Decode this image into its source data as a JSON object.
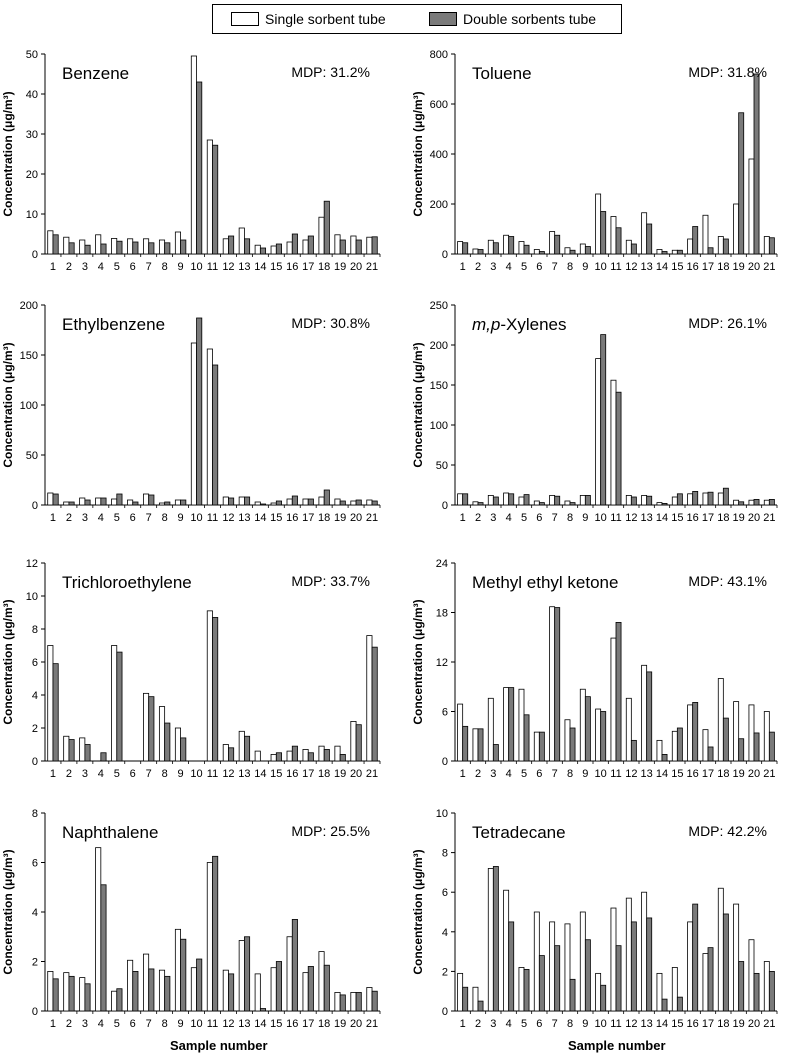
{
  "legend": {
    "single_label": "Single sorbent tube",
    "double_label": "Double sorbents tube",
    "single_color": "#ffffff",
    "double_color": "#7a7a7a"
  },
  "xlabel": "Sample number",
  "ylabel": "Concentration (μg/m³)",
  "chart_data": [
    {
      "type": "bar",
      "title": "Benzene",
      "annotation": "MDP: 31.2%",
      "ylabel": "Concentration (μg/m³)",
      "xlabel": "",
      "ylim": [
        0,
        50
      ],
      "yticks": [
        0,
        10,
        20,
        30,
        40,
        50
      ],
      "categories": [
        "1",
        "2",
        "3",
        "4",
        "5",
        "6",
        "7",
        "8",
        "9",
        "10",
        "11",
        "12",
        "13",
        "14",
        "15",
        "16",
        "17",
        "18",
        "19",
        "20",
        "21"
      ],
      "series": [
        {
          "name": "Single sorbent tube",
          "values": [
            5.8,
            4.2,
            3.5,
            4.8,
            3.9,
            3.8,
            3.8,
            3.5,
            5.5,
            49.5,
            28.5,
            3.8,
            6.5,
            2.2,
            2.0,
            3.0,
            3.5,
            9.2,
            4.8,
            4.5,
            4.2
          ]
        },
        {
          "name": "Double sorbents tube",
          "values": [
            4.8,
            2.8,
            2.2,
            2.5,
            3.2,
            3.0,
            2.8,
            2.8,
            3.5,
            43.0,
            27.2,
            4.5,
            3.8,
            1.5,
            2.5,
            5.0,
            4.5,
            13.2,
            3.5,
            3.5,
            4.3
          ]
        }
      ]
    },
    {
      "type": "bar",
      "title": "Toluene",
      "annotation": "MDP: 31.8%",
      "ylabel": "Concentration (μg/m³)",
      "xlabel": "",
      "ylim": [
        0,
        800
      ],
      "yticks": [
        0,
        200,
        400,
        600,
        800
      ],
      "categories": [
        "1",
        "2",
        "3",
        "4",
        "5",
        "6",
        "7",
        "8",
        "9",
        "10",
        "11",
        "12",
        "13",
        "14",
        "15",
        "16",
        "17",
        "18",
        "19",
        "20",
        "21"
      ],
      "series": [
        {
          "name": "Single sorbent tube",
          "values": [
            50,
            20,
            55,
            75,
            50,
            18,
            90,
            25,
            40,
            240,
            150,
            55,
            165,
            18,
            15,
            60,
            155,
            70,
            200,
            380,
            70
          ]
        },
        {
          "name": "Double sorbents tube",
          "values": [
            45,
            18,
            45,
            70,
            35,
            10,
            75,
            15,
            30,
            170,
            105,
            40,
            120,
            10,
            15,
            110,
            25,
            60,
            565,
            720,
            65
          ]
        }
      ]
    },
    {
      "type": "bar",
      "title": "Ethylbenzene",
      "annotation": "MDP: 30.8%",
      "ylabel": "Concentration (μg/m³)",
      "xlabel": "",
      "ylim": [
        0,
        200
      ],
      "yticks": [
        0,
        50,
        100,
        150,
        200
      ],
      "categories": [
        "1",
        "2",
        "3",
        "4",
        "5",
        "6",
        "7",
        "8",
        "9",
        "10",
        "11",
        "12",
        "13",
        "14",
        "15",
        "16",
        "17",
        "18",
        "19",
        "20",
        "21"
      ],
      "series": [
        {
          "name": "Single sorbent tube",
          "values": [
            12,
            3,
            7,
            7,
            6,
            5,
            11,
            2,
            5,
            162,
            156,
            8,
            8,
            3,
            2,
            6,
            6,
            8,
            6,
            4,
            5
          ]
        },
        {
          "name": "Double sorbents tube",
          "values": [
            11,
            3,
            5,
            7,
            11,
            3,
            10,
            3,
            5,
            187,
            140,
            7,
            8,
            1,
            4,
            9,
            6,
            15,
            4,
            5,
            4
          ]
        }
      ]
    },
    {
      "type": "bar",
      "title": "m,p-Xylenes",
      "annotation": "MDP: 26.1%",
      "ylabel": "Concentration (μg/m³)",
      "xlabel": "",
      "ylim": [
        0,
        250
      ],
      "yticks": [
        0,
        50,
        100,
        150,
        200,
        250
      ],
      "categories": [
        "1",
        "2",
        "3",
        "4",
        "5",
        "6",
        "7",
        "8",
        "9",
        "10",
        "11",
        "12",
        "13",
        "14",
        "15",
        "16",
        "17",
        "18",
        "19",
        "20",
        "21"
      ],
      "series": [
        {
          "name": "Single sorbent tube",
          "values": [
            14,
            4,
            12,
            15,
            10,
            5,
            12,
            5,
            12,
            183,
            156,
            12,
            12,
            3,
            10,
            14,
            15,
            15,
            6,
            6,
            6
          ]
        },
        {
          "name": "Double sorbents tube",
          "values": [
            14,
            3,
            10,
            14,
            13,
            3,
            11,
            3,
            12,
            213,
            141,
            10,
            11,
            2,
            14,
            17,
            16,
            21,
            4,
            7,
            7
          ]
        }
      ]
    },
    {
      "type": "bar",
      "title": "Trichloroethylene",
      "annotation": "MDP: 33.7%",
      "ylabel": "Concentration (μg/m³)",
      "xlabel": "",
      "ylim": [
        0,
        12
      ],
      "yticks": [
        0,
        2,
        4,
        6,
        8,
        10,
        12
      ],
      "categories": [
        "1",
        "2",
        "3",
        "4",
        "5",
        "6",
        "7",
        "8",
        "9",
        "10",
        "11",
        "12",
        "13",
        "14",
        "15",
        "16",
        "17",
        "18",
        "19",
        "20",
        "21"
      ],
      "series": [
        {
          "name": "Single sorbent tube",
          "values": [
            7.0,
            1.5,
            1.4,
            0,
            7.0,
            0,
            4.1,
            3.3,
            2.0,
            0,
            9.1,
            1.0,
            1.8,
            0.6,
            0.4,
            0.6,
            0.7,
            0.9,
            0.9,
            2.4,
            7.6
          ]
        },
        {
          "name": "Double sorbents tube",
          "values": [
            5.9,
            1.3,
            1.0,
            0.5,
            6.6,
            0,
            3.9,
            2.3,
            1.4,
            0,
            8.7,
            0.8,
            1.5,
            0,
            0.5,
            0.9,
            0.5,
            0.7,
            0.4,
            2.2,
            6.9
          ]
        }
      ]
    },
    {
      "type": "bar",
      "title": "Methyl ethyl ketone",
      "annotation": "MDP: 43.1%",
      "ylabel": "Concentration (μg/m³)",
      "xlabel": "",
      "ylim": [
        0,
        24
      ],
      "yticks": [
        0,
        6,
        12,
        18,
        24
      ],
      "categories": [
        "1",
        "2",
        "3",
        "4",
        "5",
        "6",
        "7",
        "8",
        "9",
        "10",
        "11",
        "12",
        "13",
        "14",
        "15",
        "16",
        "17",
        "18",
        "19",
        "20",
        "21"
      ],
      "series": [
        {
          "name": "Single sorbent tube",
          "values": [
            6.9,
            3.9,
            7.6,
            8.9,
            8.7,
            3.5,
            18.7,
            5.0,
            8.7,
            6.3,
            14.9,
            7.6,
            11.6,
            2.5,
            3.6,
            6.8,
            3.8,
            10.0,
            7.2,
            6.8,
            6.0
          ]
        },
        {
          "name": "Double sorbents tube",
          "values": [
            4.2,
            3.9,
            2.0,
            8.9,
            5.6,
            3.5,
            18.6,
            4.0,
            7.8,
            6.0,
            16.8,
            2.5,
            10.8,
            0.8,
            4.0,
            7.1,
            1.7,
            5.2,
            2.7,
            3.4,
            3.5
          ]
        }
      ]
    },
    {
      "type": "bar",
      "title": "Naphthalene",
      "annotation": "MDP: 25.5%",
      "ylabel": "Concentration (μg/m³)",
      "xlabel": "Sample number",
      "ylim": [
        0,
        8
      ],
      "yticks": [
        0,
        2,
        4,
        6,
        8
      ],
      "categories": [
        "1",
        "2",
        "3",
        "4",
        "5",
        "6",
        "7",
        "8",
        "9",
        "10",
        "11",
        "12",
        "13",
        "14",
        "15",
        "16",
        "17",
        "18",
        "19",
        "20",
        "21"
      ],
      "series": [
        {
          "name": "Single sorbent tube",
          "values": [
            1.6,
            1.55,
            1.35,
            6.6,
            0.8,
            2.05,
            2.3,
            1.65,
            3.3,
            1.75,
            6.0,
            1.65,
            2.85,
            1.5,
            1.75,
            3.0,
            1.55,
            2.4,
            0.75,
            0.75,
            0.95
          ]
        },
        {
          "name": "Double sorbents tube",
          "values": [
            1.3,
            1.4,
            1.1,
            5.1,
            0.9,
            1.6,
            1.7,
            1.4,
            2.9,
            2.1,
            6.25,
            1.5,
            3.0,
            0.1,
            2.0,
            3.7,
            1.8,
            1.85,
            0.65,
            0.75,
            0.8
          ]
        }
      ]
    },
    {
      "type": "bar",
      "title": "Tetradecane",
      "annotation": "MDP: 42.2%",
      "ylabel": "Concentration (μg/m³)",
      "xlabel": "Sample number",
      "ylim": [
        0,
        10
      ],
      "yticks": [
        0,
        2,
        4,
        6,
        8,
        10
      ],
      "categories": [
        "1",
        "2",
        "3",
        "4",
        "5",
        "6",
        "7",
        "8",
        "9",
        "10",
        "11",
        "12",
        "13",
        "14",
        "15",
        "16",
        "17",
        "18",
        "19",
        "20",
        "21"
      ],
      "series": [
        {
          "name": "Single sorbent tube",
          "values": [
            1.9,
            1.2,
            7.2,
            6.1,
            2.2,
            5.0,
            4.5,
            4.4,
            5.0,
            1.9,
            5.2,
            5.7,
            6.0,
            1.9,
            2.2,
            4.5,
            2.9,
            6.2,
            5.4,
            3.6,
            2.5
          ]
        },
        {
          "name": "Double sorbents tube",
          "values": [
            1.2,
            0.5,
            7.3,
            4.5,
            2.1,
            2.8,
            3.3,
            1.6,
            3.6,
            1.3,
            3.3,
            4.5,
            4.7,
            0.6,
            0.7,
            5.4,
            3.2,
            4.9,
            2.5,
            1.9,
            2.0
          ]
        }
      ]
    }
  ]
}
